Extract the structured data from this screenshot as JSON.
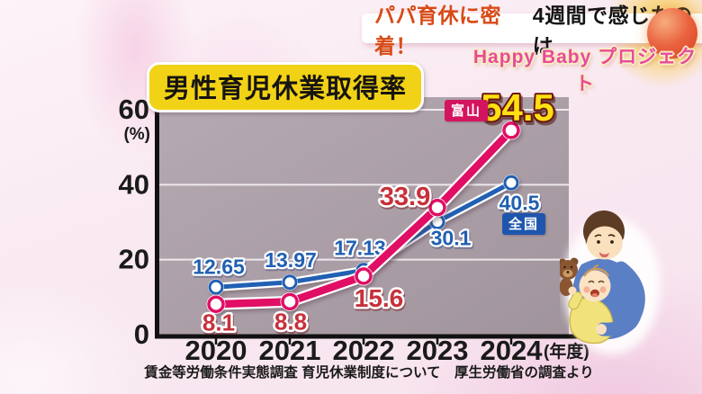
{
  "banner": {
    "highlight": "パパ育休に密着！",
    "suffix": "4週間で感じたのは",
    "project_logo": "Happy Baby プロジェクト",
    "highlight_color": "#d84a15",
    "logo_color": "#e84a9b"
  },
  "chart_data": {
    "type": "line",
    "title": "男性育児休業取得率",
    "categories": [
      "2020",
      "2021",
      "2022",
      "2023",
      "2024"
    ],
    "x_unit": "(年度)",
    "y_unit": "(%)",
    "yticks": [
      0,
      20,
      40,
      60
    ],
    "ylim": [
      0,
      63
    ],
    "grid": true,
    "legend_position": "inline-badges",
    "series": [
      {
        "name": "全国",
        "values": [
          12.65,
          13.97,
          17.13,
          30.1,
          40.5
        ],
        "color": "#2160b2",
        "label_color": "#2160b2",
        "badge_bg": "#1e56ae"
      },
      {
        "name": "富山",
        "values": [
          8.1,
          8.8,
          15.6,
          33.9,
          54.5
        ],
        "color": "#e00e64",
        "label_color": "#c8303a",
        "badge_bg": "#d4145f",
        "final_label_color": "#ffe112",
        "final_label_outline": "#6b150e"
      }
    ],
    "source": "賃金等労働条件実態調査 育児休業制度について　厚生労働省の調査より",
    "panel_color": "#aa9ea6",
    "grid_color": "#eee8ec"
  }
}
